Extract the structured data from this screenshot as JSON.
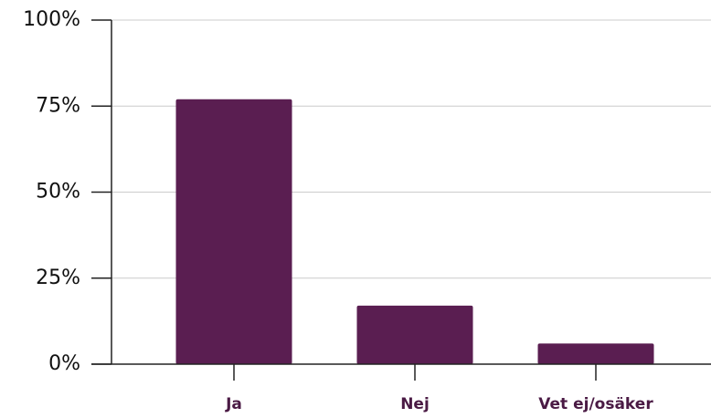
{
  "chart_data": {
    "type": "bar",
    "categories": [
      "Ja",
      "Nej",
      "Vet ej/osäker"
    ],
    "values": [
      77,
      17,
      6
    ],
    "color": "#5a1e51",
    "ylim": [
      0,
      100
    ],
    "yticks": [
      {
        "value": 0,
        "label": "0%"
      },
      {
        "value": 25,
        "label": "25%"
      },
      {
        "value": 50,
        "label": "50%"
      },
      {
        "value": 75,
        "label": "75%"
      },
      {
        "value": 100,
        "label": "100%"
      }
    ],
    "grid": true
  }
}
